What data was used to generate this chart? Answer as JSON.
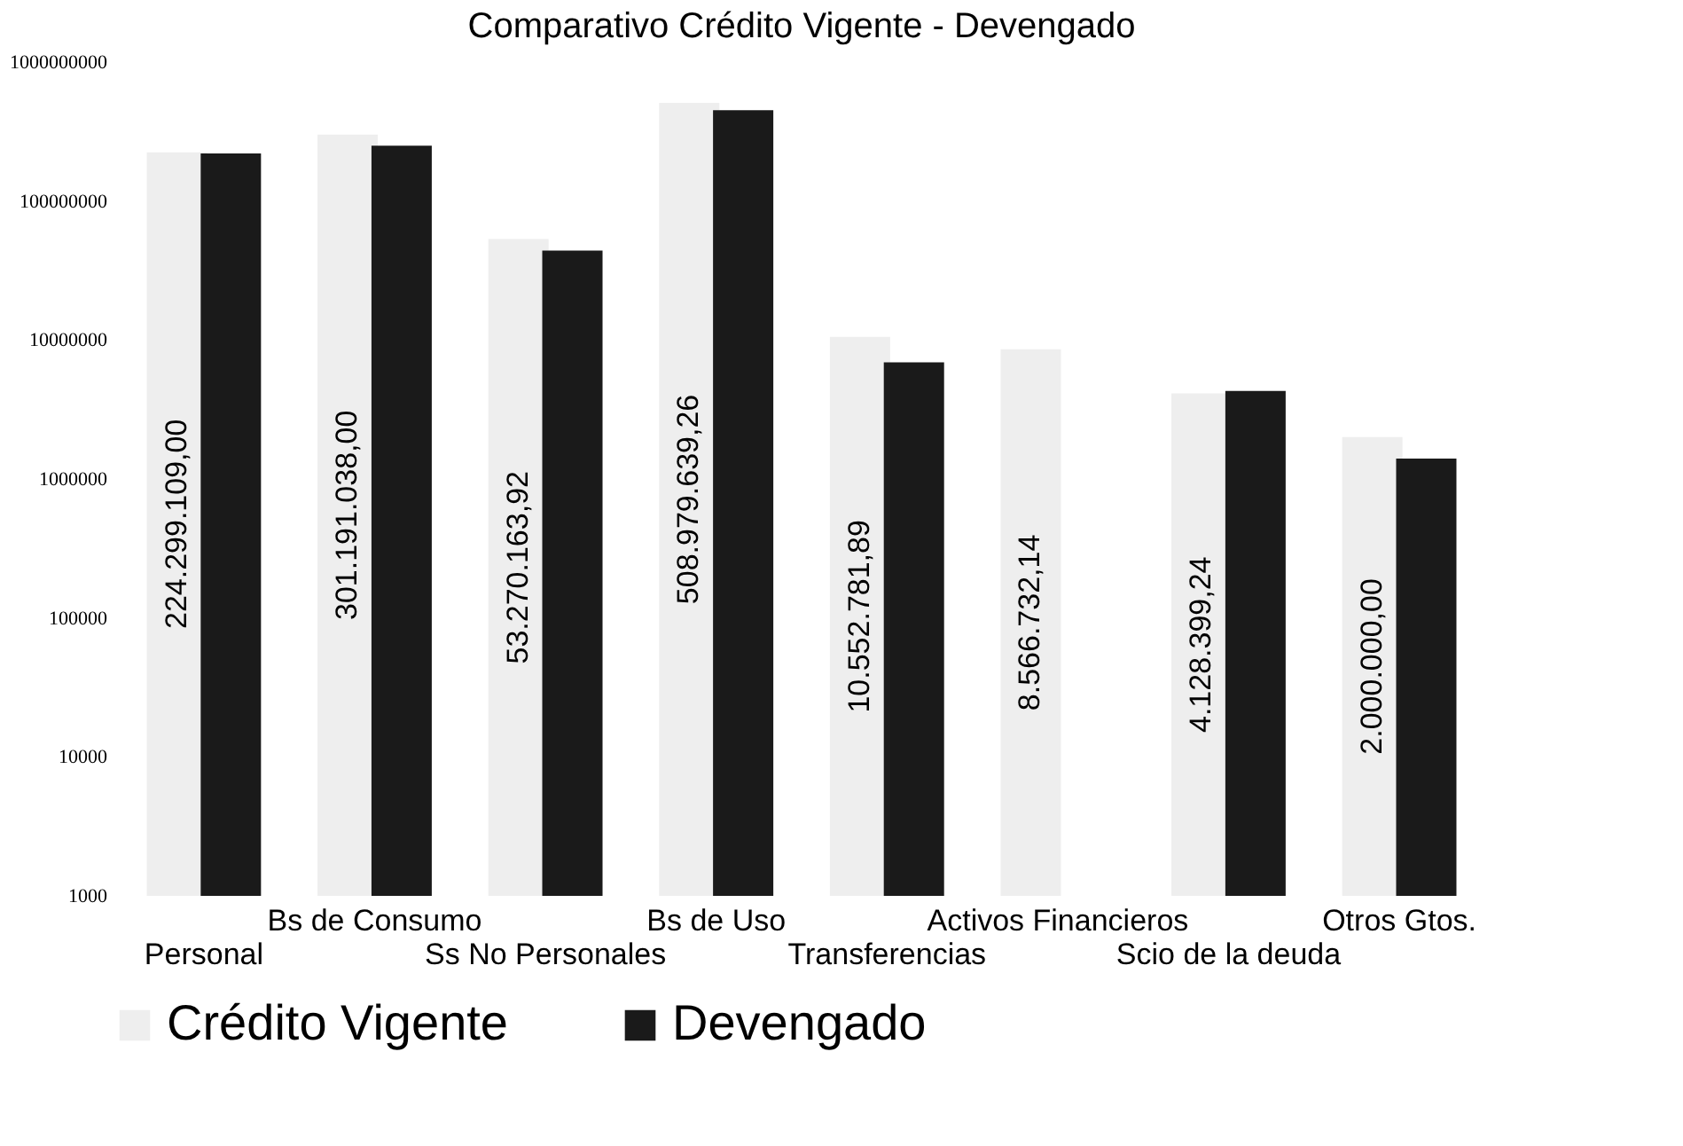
{
  "chart_data": {
    "type": "bar",
    "title": "Comparativo Crédito Vigente - Devengado",
    "categories": [
      "Personal",
      "Bs de Consumo",
      "Ss No Personales",
      "Bs de Uso",
      "Transferencias",
      "Activos Financieros",
      "Scio de la deuda",
      "Otros Gtos."
    ],
    "series": [
      {
        "name": "Crédito Vigente",
        "color": "#eeeeee",
        "values": [
          224299109.0,
          301191038.0,
          53270163.92,
          508979639.26,
          10552781.89,
          8566732.14,
          4128399.24,
          2000000.0
        ],
        "value_labels": [
          "224.299.109,00",
          "301.191.038,00",
          "53.270.163,92",
          "508.979.639,26",
          "10.552.781,89",
          "8.566.732,14",
          "4.128.399,24",
          "2.000.000,00"
        ]
      },
      {
        "name": "Devengado",
        "color": "#1a1a1a",
        "values": [
          220000000,
          250000000,
          44000000,
          450000000,
          6900000,
          null,
          4300000,
          1400000
        ]
      }
    ],
    "log": true,
    "ylim": [
      1000,
      1000000000
    ],
    "yticks": [
      1000,
      10000,
      100000,
      1000000,
      10000000,
      100000000,
      1000000000
    ],
    "grid": false,
    "legend": "bottom"
  }
}
